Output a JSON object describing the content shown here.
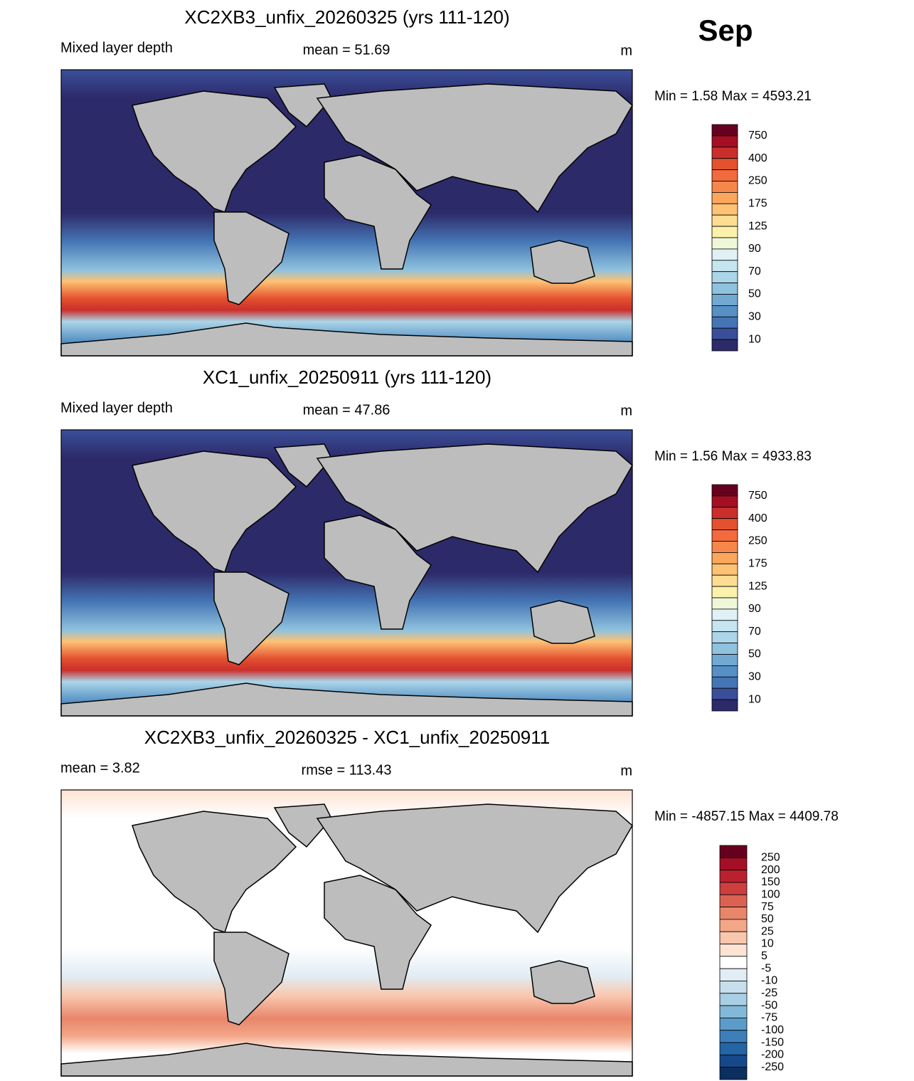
{
  "month": "Sep",
  "panels": [
    {
      "title": "XC2XB3_unfix_20260325 (yrs 111-120)",
      "left": "Mixed layer depth",
      "center": "mean =  51.69",
      "units": "m",
      "minmax": "Min =   1.58 Max = 4593.21",
      "colorbar": {
        "labels": [
          "750",
          "400",
          "250",
          "175",
          "125",
          "90",
          "70",
          "50",
          "30",
          "10"
        ],
        "colors": [
          "#67001f",
          "#a50f24",
          "#cb2f2b",
          "#e4512f",
          "#f26a3d",
          "#f6874a",
          "#fba65c",
          "#fdc273",
          "#fedd92",
          "#fbf1aa",
          "#eef7d7",
          "#e0f1f6",
          "#c5e5f0",
          "#abd5e8",
          "#8fc2de",
          "#72a9d1",
          "#5690c4",
          "#4575b4",
          "#3a4f9a",
          "#2d2a6a"
        ]
      }
    },
    {
      "title": "XC1_unfix_20250911 (yrs 111-120)",
      "left": "Mixed layer depth",
      "center": "mean =  47.86",
      "units": "m",
      "minmax": "Min =   1.56 Max = 4933.83",
      "colorbar": {
        "labels": [
          "750",
          "400",
          "250",
          "175",
          "125",
          "90",
          "70",
          "50",
          "30",
          "10"
        ],
        "colors": [
          "#67001f",
          "#a50f24",
          "#cb2f2b",
          "#e4512f",
          "#f26a3d",
          "#f6874a",
          "#fba65c",
          "#fdc273",
          "#fedd92",
          "#fbf1aa",
          "#eef7d7",
          "#e0f1f6",
          "#c5e5f0",
          "#abd5e8",
          "#8fc2de",
          "#72a9d1",
          "#5690c4",
          "#4575b4",
          "#3a4f9a",
          "#2d2a6a"
        ]
      }
    },
    {
      "title": "XC2XB3_unfix_20260325 - XC1_unfix_20250911",
      "left": "mean =   3.82",
      "center": "rmse = 113.43",
      "units": "m",
      "minmax": "Min = -4857.15 Max = 4409.78",
      "colorbar": {
        "labels": [
          "250",
          "200",
          "150",
          "100",
          "75",
          "50",
          "25",
          "10",
          "5",
          "-5",
          "-10",
          "-25",
          "-50",
          "-75",
          "-100",
          "-150",
          "-200",
          "-250"
        ],
        "colors": [
          "#67001f",
          "#a50f26",
          "#b9212f",
          "#cd3e3e",
          "#db6252",
          "#e8866a",
          "#f3a788",
          "#f9c7ae",
          "#fde3d4",
          "#ffffff",
          "#e1edf4",
          "#c7dfec",
          "#a9cfe4",
          "#83b9d8",
          "#5c9ccb",
          "#3c7fb9",
          "#2465a6",
          "#15498a",
          "#0b2f5f"
        ]
      }
    }
  ]
}
